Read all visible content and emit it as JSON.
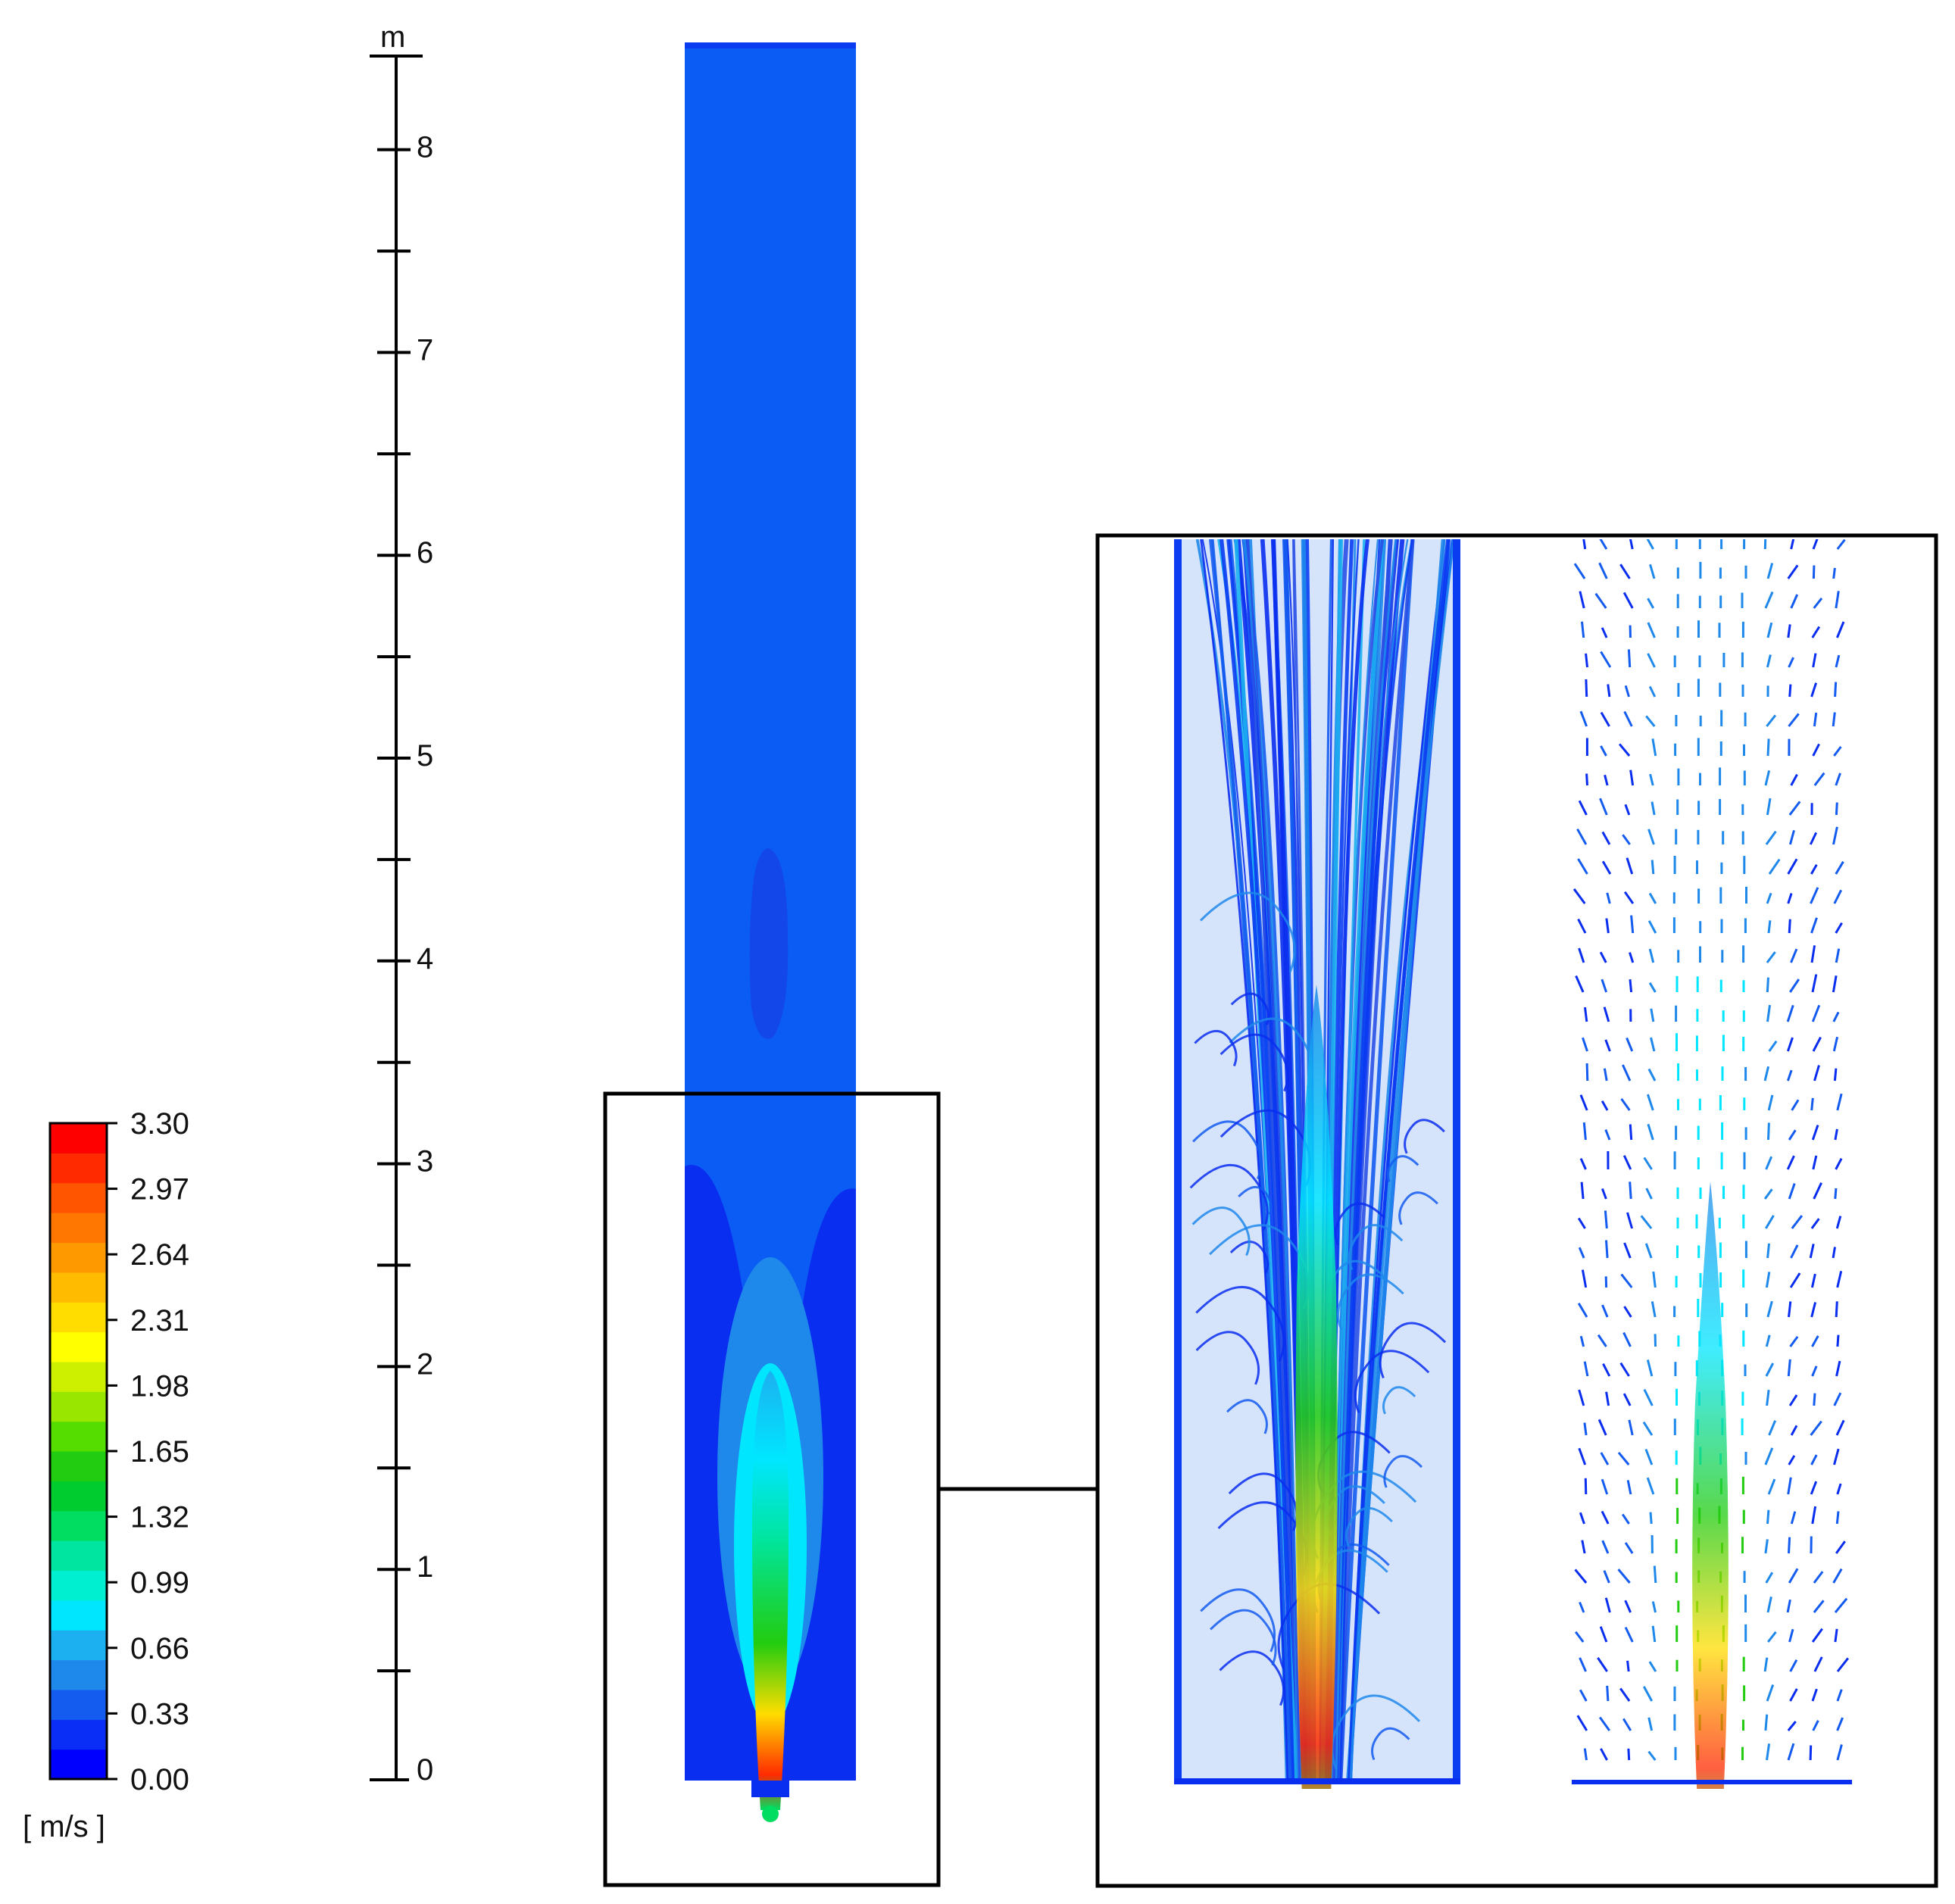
{
  "legend": {
    "unit": "[ m/s ]",
    "levels": [
      "3.30",
      "2.97",
      "2.64",
      "2.31",
      "1.98",
      "1.65",
      "1.32",
      "0.99",
      "0.66",
      "0.33",
      "0.00"
    ],
    "min": 0.0,
    "max": 3.3,
    "bands": 22,
    "colors": [
      "#0000ff",
      "#0a2ef5",
      "#145cf0",
      "#1e88eb",
      "#1cb0f0",
      "#00e6ff",
      "#00efd0",
      "#00e6a0",
      "#00dd60",
      "#00cc30",
      "#22cc10",
      "#55dd00",
      "#99e600",
      "#ccf000",
      "#ffff00",
      "#ffdd00",
      "#ffbb00",
      "#ff9900",
      "#ff7700",
      "#ff5500",
      "#ff2a00",
      "#ff0000"
    ]
  },
  "scale": {
    "unit": "m",
    "ticks": [
      "0",
      "1",
      "2",
      "3",
      "4",
      "5",
      "6",
      "7",
      "8"
    ]
  },
  "colors": {
    "background_flow": "#0a5cf4",
    "dark_flow": "#0a2ef0",
    "frame": "#000000"
  }
}
